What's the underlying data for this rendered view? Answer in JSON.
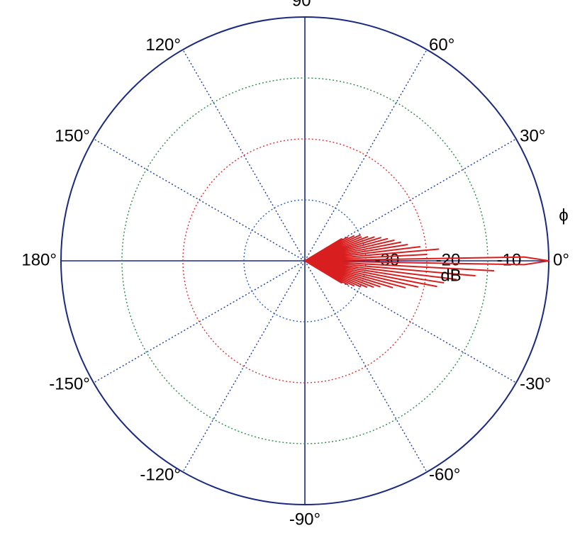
{
  "chart_data": {
    "type": "polar",
    "theta_label": "ϕ",
    "r_label": "dB",
    "rlim": [
      -40,
      0
    ],
    "rticks": [
      -30,
      -20,
      -10
    ],
    "rtick_colors": [
      "#3060c0",
      "#e03030",
      "#2a8a4a"
    ],
    "thetaticks": [
      {
        "value": 0,
        "label": "0°"
      },
      {
        "value": 30,
        "label": "30°"
      },
      {
        "value": 60,
        "label": "60°"
      },
      {
        "value": 90,
        "label": "90°"
      },
      {
        "value": 120,
        "label": "120°"
      },
      {
        "value": 150,
        "label": "150°"
      },
      {
        "value": 180,
        "label": "180°"
      },
      {
        "value": -150,
        "label": "-150°"
      },
      {
        "value": -120,
        "label": "-120°"
      },
      {
        "value": -90,
        "label": "-90°"
      },
      {
        "value": -60,
        "label": "-60°"
      },
      {
        "value": -30,
        "label": "-30°"
      }
    ],
    "grid": true,
    "axis_color": "#1a2a80",
    "spoke_color": "#2040a0",
    "series": [
      {
        "color": "#d81e1e",
        "theta": [
          -32,
          -31,
          -30,
          -29,
          -28,
          -27,
          -26,
          -25,
          -24,
          -23,
          -22,
          -21,
          -20,
          -19,
          -18,
          -17,
          -16,
          -15,
          -14,
          -13,
          -12,
          -11,
          -10,
          -9,
          -8,
          -7,
          -6,
          -5,
          -4,
          -3,
          -2,
          -1,
          0,
          1,
          2,
          3,
          4,
          5,
          6,
          7,
          8,
          9,
          10,
          11,
          12,
          13,
          14,
          15,
          16,
          17,
          18,
          19,
          20,
          21,
          22,
          23,
          24,
          25,
          26,
          27,
          28,
          29,
          30,
          31,
          32
        ],
        "r": [
          -40,
          -33,
          -40,
          -32,
          -40,
          -31,
          -40,
          -30,
          -40,
          -29,
          -40,
          -28,
          -40,
          -27,
          -40,
          -25,
          -40,
          -23,
          -40,
          -21,
          -40,
          -18,
          -40,
          -17,
          -40,
          -15,
          -40,
          -12,
          -40,
          -9,
          -40,
          -4,
          0,
          -4,
          -40,
          -20,
          -40,
          -18,
          -40,
          -21,
          -40,
          -23,
          -40,
          -24,
          -40,
          -25,
          -40,
          -26,
          -40,
          -27,
          -40,
          -28,
          -40,
          -29,
          -40,
          -30,
          -40,
          -30,
          -40,
          -31,
          -40,
          -32,
          -40,
          -33,
          -40
        ]
      }
    ]
  }
}
